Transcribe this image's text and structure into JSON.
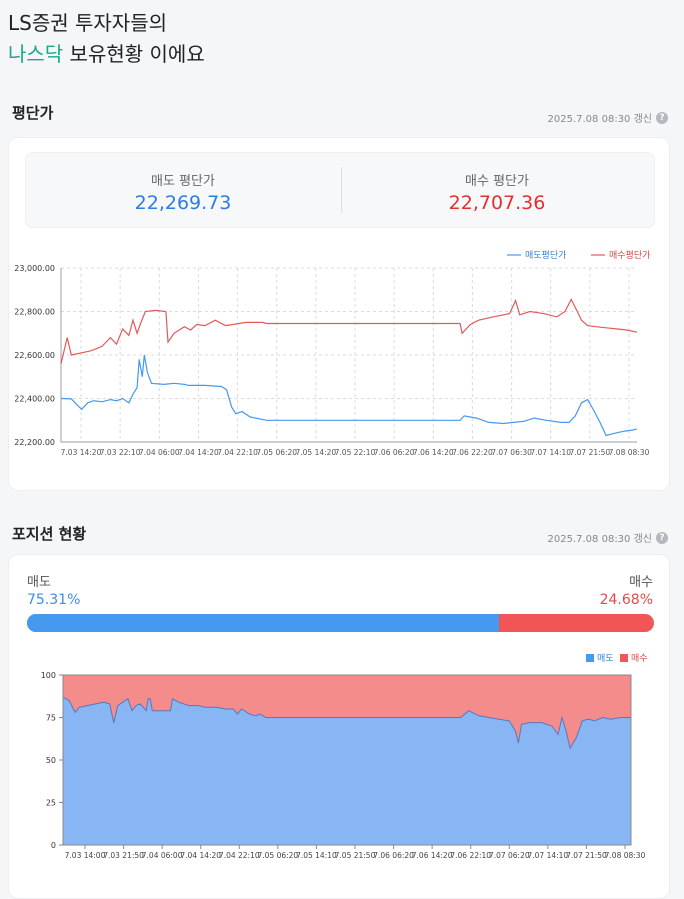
{
  "headline": {
    "line1": "LS증권 투자자들의",
    "accent": "나스닥",
    "line2_rest": " 보유현황 이에요"
  },
  "avg_section": {
    "title": "평단가",
    "updated": "2025.7.08 08:30 갱신",
    "sell_label": "매도 평단가",
    "sell_value": "22,269.73",
    "buy_label": "매수 평단가",
    "buy_value": "22,707.36"
  },
  "position_section": {
    "title": "포지션 현황",
    "updated": "2025.7.08 08:30 갱신",
    "sell_label": "매도",
    "sell_pct_text": "75.31%",
    "buy_label": "매수",
    "buy_pct_text": "24.68%",
    "sell_fraction": 0.7531
  },
  "colors": {
    "sell": "#4599ee",
    "buy": "#f25555",
    "accent": "#17a98c"
  },
  "chart_data": [
    {
      "type": "line",
      "legend": [
        "매도평단가",
        "매수평단가"
      ],
      "legend_position": "top-right",
      "grid": true,
      "ylim": [
        22200,
        23000
      ],
      "yticks": [
        "23,000.00",
        "22,800.00",
        "22,600.00",
        "22,400.00",
        "22,200.00"
      ],
      "xticks": [
        "7.03 14:20",
        "7.03 22:10",
        "7.04 06:00",
        "7.04 14:20",
        "7.04 22:10",
        "7.05 06:20",
        "7.05 14:20",
        "7.05 22:10",
        "7.06 06:20",
        "7.06 14:20",
        "7.06 22:20",
        "7.07 06:30",
        "7.07 14:10",
        "7.07 21:50",
        "7.08 08:30"
      ],
      "series": [
        {
          "name": "매도평단가",
          "points": [
            [
              0,
              22400
            ],
            [
              0.5,
              22398
            ],
            [
              1,
              22350
            ],
            [
              1.3,
              22380
            ],
            [
              1.6,
              22390
            ],
            [
              2,
              22385
            ],
            [
              2.4,
              22395
            ],
            [
              2.7,
              22390
            ],
            [
              3,
              22400
            ],
            [
              3.3,
              22380
            ],
            [
              3.5,
              22420
            ],
            [
              3.7,
              22450
            ],
            [
              3.8,
              22580
            ],
            [
              3.95,
              22500
            ],
            [
              4.05,
              22600
            ],
            [
              4.2,
              22520
            ],
            [
              4.4,
              22470
            ],
            [
              5,
              22465
            ],
            [
              5.5,
              22470
            ],
            [
              6,
              22465
            ],
            [
              6.2,
              22460
            ],
            [
              7,
              22460
            ],
            [
              7.8,
              22455
            ],
            [
              8.05,
              22440
            ],
            [
              8.3,
              22360
            ],
            [
              8.5,
              22330
            ],
            [
              8.8,
              22340
            ],
            [
              9.2,
              22315
            ],
            [
              10,
              22300
            ],
            [
              12,
              22300
            ],
            [
              14,
              22300
            ],
            [
              16,
              22300
            ],
            [
              18,
              22300
            ],
            [
              19.4,
              22300
            ],
            [
              19.6,
              22320
            ],
            [
              20.2,
              22310
            ],
            [
              20.8,
              22290
            ],
            [
              21.5,
              22285
            ],
            [
              22,
              22290
            ],
            [
              22.5,
              22295
            ],
            [
              23,
              22310
            ],
            [
              23.6,
              22300
            ],
            [
              24.3,
              22290
            ],
            [
              24.7,
              22290
            ],
            [
              25,
              22320
            ],
            [
              25.3,
              22380
            ],
            [
              25.6,
              22395
            ],
            [
              25.9,
              22345
            ],
            [
              26.2,
              22290
            ],
            [
              26.5,
              22230
            ],
            [
              26.9,
              22240
            ],
            [
              27.4,
              22250
            ],
            [
              27.8,
              22255
            ],
            [
              28,
              22260
            ]
          ]
        },
        {
          "name": "매수평단가",
          "points": [
            [
              0,
              22560
            ],
            [
              0.3,
              22680
            ],
            [
              0.5,
              22600
            ],
            [
              1,
              22610
            ],
            [
              1.5,
              22620
            ],
            [
              2,
              22640
            ],
            [
              2.4,
              22680
            ],
            [
              2.7,
              22650
            ],
            [
              3,
              22720
            ],
            [
              3.3,
              22690
            ],
            [
              3.5,
              22760
            ],
            [
              3.7,
              22700
            ],
            [
              3.85,
              22740
            ],
            [
              4.1,
              22800
            ],
            [
              4.6,
              22805
            ],
            [
              5.1,
              22800
            ],
            [
              5.2,
              22660
            ],
            [
              5.5,
              22700
            ],
            [
              6,
              22730
            ],
            [
              6.3,
              22715
            ],
            [
              6.6,
              22740
            ],
            [
              7,
              22735
            ],
            [
              7.5,
              22760
            ],
            [
              8,
              22735
            ],
            [
              9,
              22750
            ],
            [
              9.8,
              22750
            ],
            [
              10,
              22745
            ],
            [
              12,
              22745
            ],
            [
              14,
              22745
            ],
            [
              16,
              22745
            ],
            [
              18,
              22745
            ],
            [
              19.4,
              22745
            ],
            [
              19.5,
              22700
            ],
            [
              19.9,
              22740
            ],
            [
              20.3,
              22760
            ],
            [
              21,
              22775
            ],
            [
              21.8,
              22790
            ],
            [
              22.1,
              22850
            ],
            [
              22.3,
              22785
            ],
            [
              22.8,
              22800
            ],
            [
              23.5,
              22790
            ],
            [
              24.1,
              22775
            ],
            [
              24.5,
              22800
            ],
            [
              24.8,
              22855
            ],
            [
              25.1,
              22800
            ],
            [
              25.3,
              22760
            ],
            [
              25.6,
              22735
            ],
            [
              26,
              22730
            ],
            [
              26.5,
              22725
            ],
            [
              27,
              22720
            ],
            [
              27.5,
              22715
            ],
            [
              28,
              22705
            ]
          ]
        }
      ]
    },
    {
      "type": "area",
      "legend": [
        "매도",
        "매수"
      ],
      "legend_position": "top-right",
      "ylim": [
        0,
        100
      ],
      "yticks": [
        "100",
        "75",
        "50",
        "25",
        "0"
      ],
      "xticks": [
        "7.03 14:00",
        "7.03 21:50",
        "7.04 06:00",
        "7.04 14:20",
        "7.04 22:10",
        "7.05 06:20",
        "7.05 14:10",
        "7.05 21:50",
        "7.06 06:20",
        "7.06 14:20",
        "7.06 22:10",
        "7.07 06:20",
        "7.07 14:10",
        "7.07 21:50",
        "7.08 08:30"
      ],
      "series": [
        {
          "name": "매도",
          "points": [
            [
              0,
              87
            ],
            [
              0.3,
              85
            ],
            [
              0.6,
              78
            ],
            [
              0.8,
              81
            ],
            [
              1.2,
              82
            ],
            [
              1.6,
              83
            ],
            [
              2,
              84
            ],
            [
              2.3,
              83
            ],
            [
              2.5,
              72
            ],
            [
              2.7,
              82
            ],
            [
              3.2,
              86
            ],
            [
              3.4,
              79
            ],
            [
              3.6,
              82
            ],
            [
              3.8,
              83
            ],
            [
              4.1,
              79
            ],
            [
              4.2,
              86
            ],
            [
              4.3,
              86
            ],
            [
              4.4,
              79
            ],
            [
              5.3,
              79
            ],
            [
              5.4,
              86
            ],
            [
              5.7,
              84
            ],
            [
              6.2,
              82
            ],
            [
              6.7,
              82
            ],
            [
              7,
              81
            ],
            [
              7.6,
              81
            ],
            [
              8,
              80
            ],
            [
              8.4,
              80
            ],
            [
              8.6,
              77
            ],
            [
              8.8,
              80
            ],
            [
              9.2,
              77
            ],
            [
              9.5,
              76
            ],
            [
              9.7,
              77
            ],
            [
              10,
              75
            ],
            [
              12,
              75
            ],
            [
              14,
              75
            ],
            [
              16,
              75
            ],
            [
              18,
              75
            ],
            [
              19.6,
              75
            ],
            [
              20,
              79
            ],
            [
              20.5,
              76
            ],
            [
              21,
              75
            ],
            [
              21.5,
              74
            ],
            [
              22,
              73
            ],
            [
              22.3,
              67
            ],
            [
              22.45,
              60
            ],
            [
              22.6,
              71
            ],
            [
              23,
              72
            ],
            [
              23.6,
              72
            ],
            [
              24.1,
              70
            ],
            [
              24.4,
              65
            ],
            [
              24.6,
              75
            ],
            [
              24.8,
              67
            ],
            [
              25,
              57
            ],
            [
              25.3,
              63
            ],
            [
              25.6,
              73
            ],
            [
              25.9,
              74
            ],
            [
              26.2,
              73
            ],
            [
              26.6,
              75
            ],
            [
              27,
              74
            ],
            [
              27.5,
              75
            ],
            [
              28,
              75
            ]
          ]
        }
      ]
    }
  ]
}
